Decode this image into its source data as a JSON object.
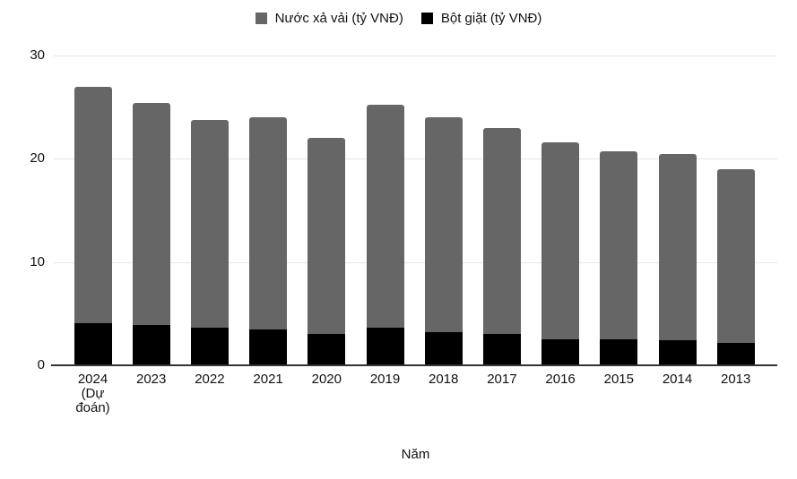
{
  "chart_data": {
    "type": "bar",
    "stacked": true,
    "title": "",
    "xlabel": "Năm",
    "ylabel": "",
    "ylim": [
      0,
      30
    ],
    "yticks": [
      0,
      10,
      20,
      30
    ],
    "grid": true,
    "legend_position": "top-center",
    "categories": [
      "2024\n(Dự\nđoán)",
      "2023",
      "2022",
      "2021",
      "2020",
      "2019",
      "2018",
      "2017",
      "2016",
      "2015",
      "2014",
      "2013"
    ],
    "series": [
      {
        "name": "Nước xả vải (tỷ VNĐ)",
        "color": "#666666",
        "values": [
          22.9,
          21.5,
          20.2,
          20.5,
          19.0,
          21.6,
          20.8,
          20.0,
          19.1,
          18.2,
          18.1,
          16.8
        ]
      },
      {
        "name": "Bột giặt (tỷ VNĐ)",
        "color": "#000000",
        "values": [
          4.1,
          3.9,
          3.6,
          3.5,
          3.0,
          3.6,
          3.2,
          3.0,
          2.5,
          2.5,
          2.4,
          2.2
        ]
      }
    ],
    "totals": [
      27.0,
      25.4,
      23.8,
      24.0,
      22.0,
      25.2,
      24.0,
      23.0,
      21.6,
      20.7,
      20.5,
      19.0
    ],
    "stack_order_note": "Bột giặt (black) is the bottom segment; Nước xả vải (gray) stacks on top"
  },
  "colors": {
    "background": "#ffffff",
    "gridline": "#e6e6e6",
    "axis_line": "#333333",
    "text": "#111111"
  }
}
